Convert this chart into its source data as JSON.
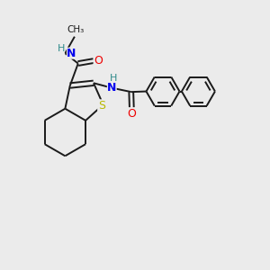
{
  "bg_color": "#ebebeb",
  "bond_color": "#1a1a1a",
  "S_color": "#b8b800",
  "N_color": "#0000ee",
  "O_color": "#ee0000",
  "H_color": "#2e8b8b",
  "line_width": 1.4,
  "fig_size": [
    3.0,
    3.0
  ],
  "dpi": 100,
  "xlim": [
    0,
    10
  ],
  "ylim": [
    0,
    10
  ]
}
